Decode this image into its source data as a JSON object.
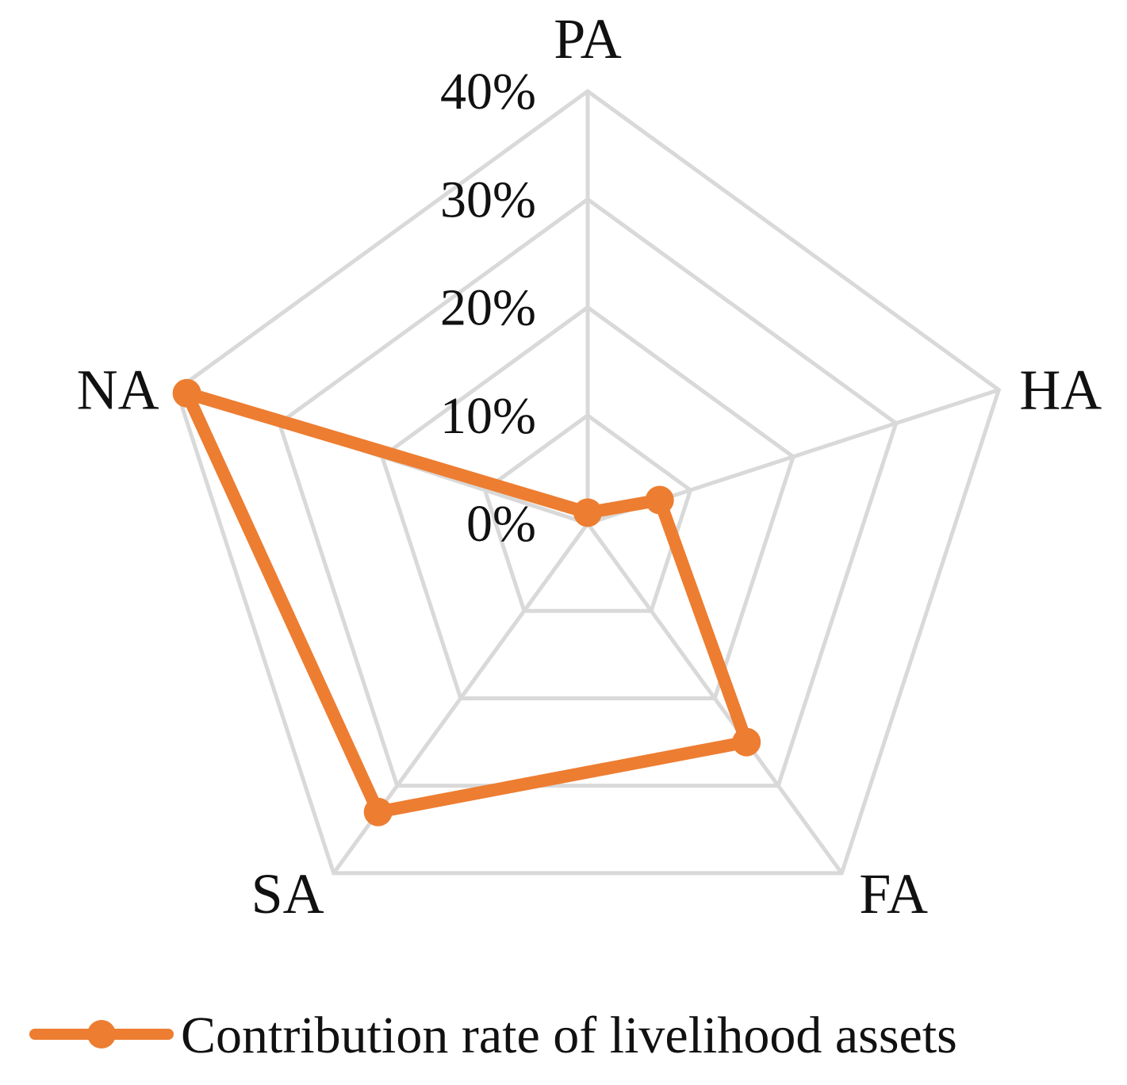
{
  "chart_data": {
    "type": "radar",
    "categories": [
      "PA",
      "HA",
      "FA",
      "SA",
      "NA"
    ],
    "axis": {
      "min": 0,
      "max": 0.4,
      "ticks": [
        0,
        0.1,
        0.2,
        0.3,
        0.4
      ],
      "tick_labels": [
        "0%",
        "10%",
        "20%",
        "30%",
        "40%"
      ]
    },
    "series": [
      {
        "name": "Contribution rate of livelihood assets",
        "values": [
          0.01,
          0.07,
          0.25,
          0.33,
          0.39
        ],
        "color": "#ED7D31"
      }
    ],
    "grid": true,
    "grid_color": "#D9D9D9",
    "legend": "bottom"
  }
}
